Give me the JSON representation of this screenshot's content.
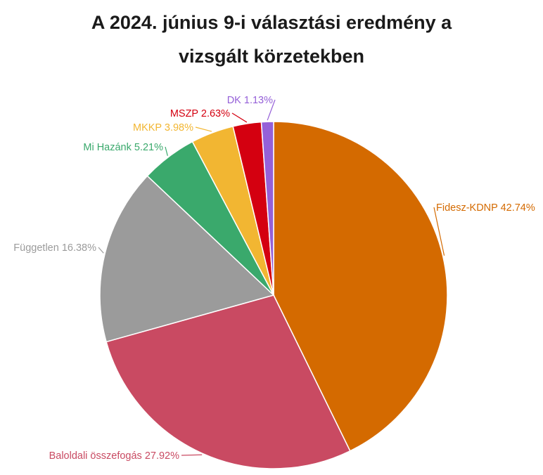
{
  "title_line1": "A 2024. június 9-i választási eredmény a",
  "title_line2": "vizsgált körzetekben",
  "chart_data": {
    "type": "pie",
    "title": "A 2024. június 9-i választási eredmény a vizsgált körzetekben",
    "slices": [
      {
        "name": "Fidesz-KDNP",
        "value": 42.74,
        "label": "Fidesz-KDNP 42.74%",
        "color": "#d46a00"
      },
      {
        "name": "Baloldali összefogás",
        "value": 27.92,
        "label": "Baloldali összefogás 27.92%",
        "color": "#c94a62"
      },
      {
        "name": "Független",
        "value": 16.38,
        "label": "Független 16.38%",
        "color": "#9b9b9b"
      },
      {
        "name": "Mi Hazánk",
        "value": 5.21,
        "label": "Mi Hazánk 5.21%",
        "color": "#3aa96c"
      },
      {
        "name": "MKKP",
        "value": 3.98,
        "label": "MKKP 3.98%",
        "color": "#f2b632"
      },
      {
        "name": "MSZP",
        "value": 2.63,
        "label": "MSZP 2.63%",
        "color": "#d40010"
      },
      {
        "name": "DK",
        "value": 1.13,
        "label": "DK 1.13%",
        "color": "#9560d8"
      }
    ]
  }
}
